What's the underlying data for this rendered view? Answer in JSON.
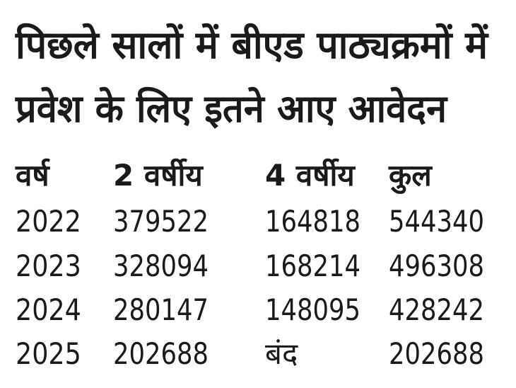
{
  "header": {
    "title": [
      "पिछले सालों में बीएड पाठ्यक्रमों में",
      "प्रवेश के लिए इतने आए आवेदन"
    ]
  },
  "table": {
    "columns": [
      "वर्ष",
      "2 वर्षीय",
      "4 वर्षीय",
      "कुल"
    ],
    "rows": [
      [
        2022,
        379522,
        164818,
        544340
      ],
      [
        2023,
        328094,
        168214,
        496308
      ],
      [
        2024,
        280147,
        148095,
        428242
      ],
      [
        2025,
        202688,
        "बंद",
        202688
      ]
    ]
  }
}
